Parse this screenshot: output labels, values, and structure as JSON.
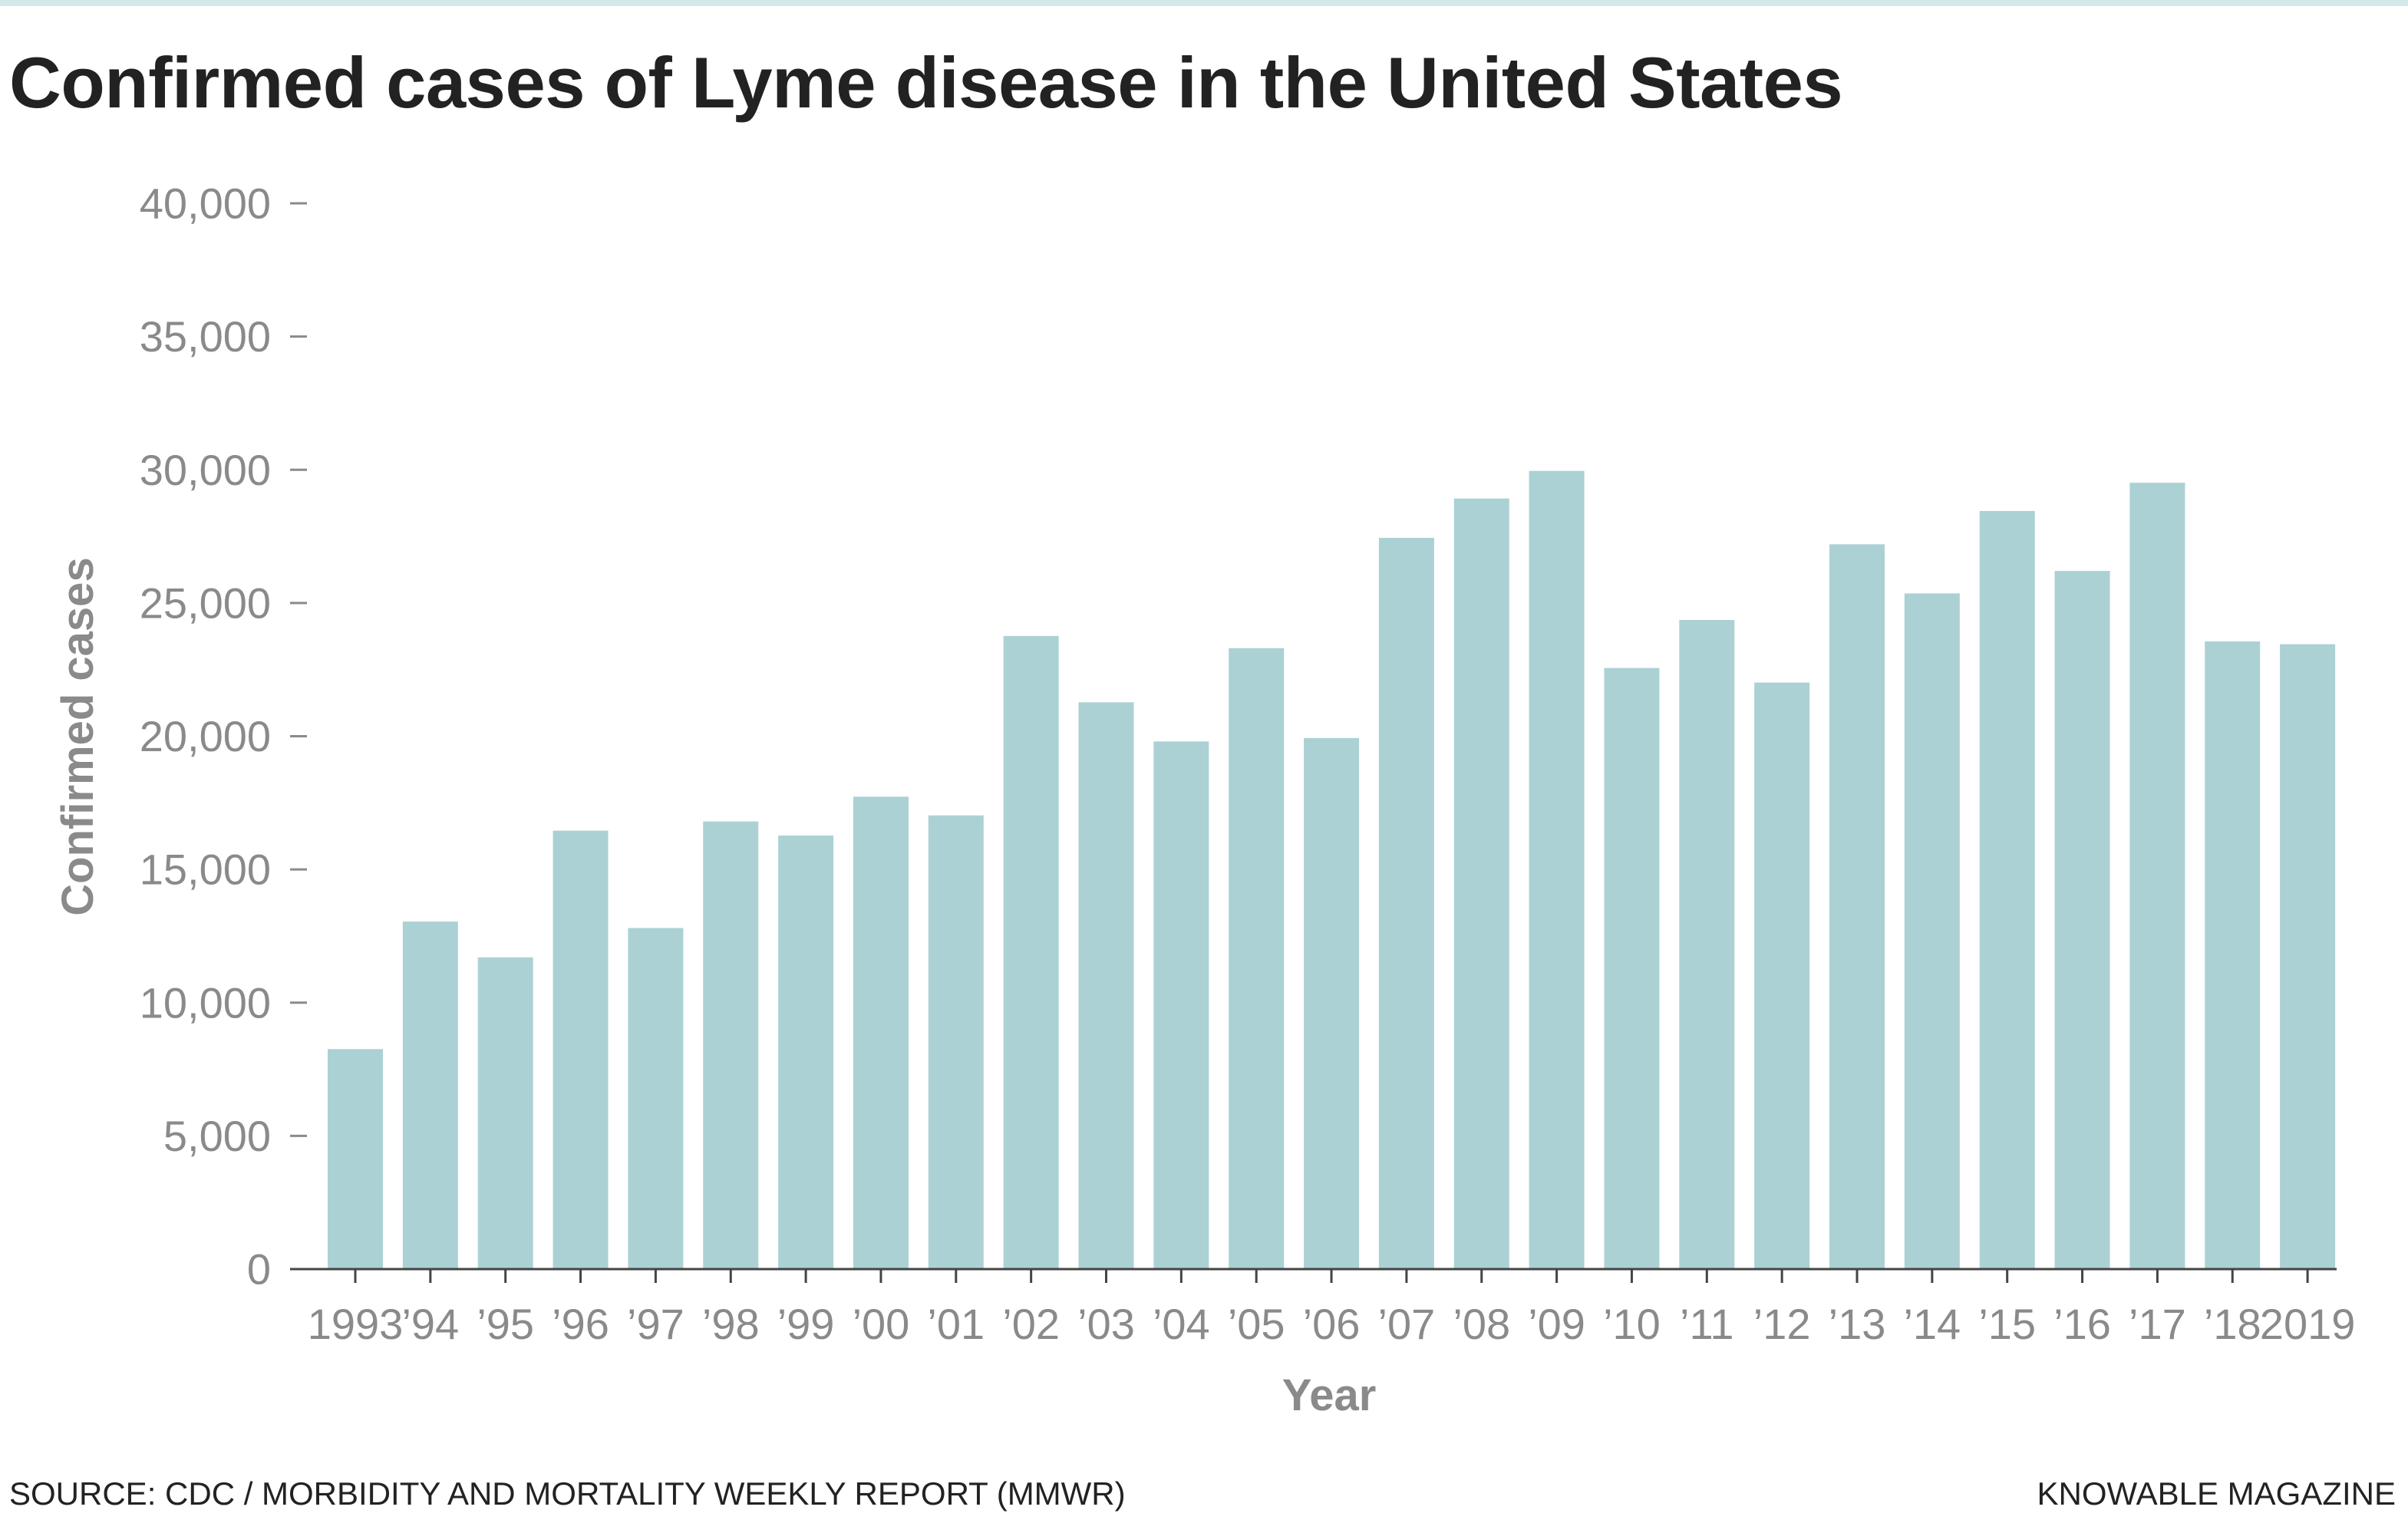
{
  "title": "Confirmed cases of Lyme disease in the United States",
  "source": "SOURCE: CDC / MORBIDITY AND MORTALITY WEEKLY REPORT (MMWR)",
  "publisher": "KNOWABLE MAGAZINE",
  "colors": {
    "bar": "#abd1d4",
    "axis": "#444444",
    "tick_text": "#8a8a8a",
    "title_text": "#222222",
    "top_rule": "#d4e8ea"
  },
  "chart_data": {
    "type": "bar",
    "title": "Confirmed cases of Lyme disease in the United States",
    "xlabel": "Year",
    "ylabel": "Confirmed cases",
    "ylim": [
      0,
      40000
    ],
    "yticks": [
      0,
      5000,
      10000,
      15000,
      20000,
      25000,
      30000,
      35000,
      40000
    ],
    "ytick_labels": [
      "0",
      "5,000",
      "10,000",
      "15,000",
      "20,000",
      "25,000",
      "30,000",
      "35,000",
      "40,000"
    ],
    "categories": [
      "1993",
      "’94",
      "’95",
      "’96",
      "’97",
      "’98",
      "’99",
      "’00",
      "’01",
      "’02",
      "’03",
      "’04",
      "’05",
      "’06",
      "’07",
      "’08",
      "’09",
      "’10",
      "’11",
      "’12",
      "’13",
      "’14",
      "’15",
      "’16",
      "’17",
      "’18",
      "2019"
    ],
    "values": [
      8257,
      13043,
      11700,
      16455,
      12801,
      16801,
      16273,
      17730,
      17029,
      23763,
      21273,
      19804,
      23305,
      19931,
      27444,
      28921,
      29959,
      22561,
      24364,
      22014,
      27203,
      25359,
      28453,
      26203,
      29513,
      23558,
      23453
    ],
    "grid": false,
    "legend": "none"
  }
}
